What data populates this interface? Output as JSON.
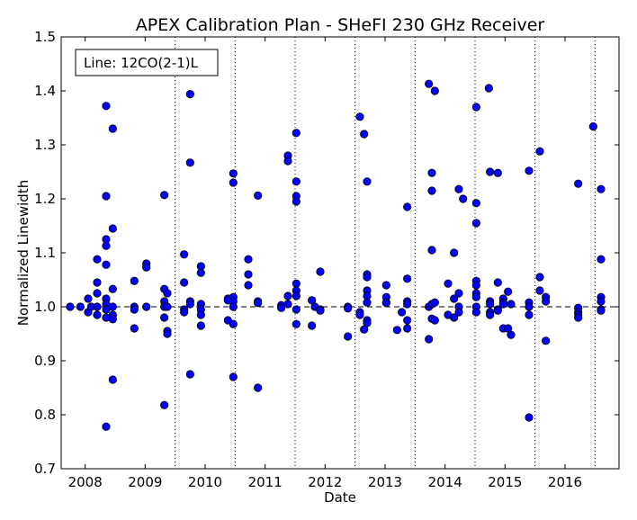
{
  "chart_data": {
    "type": "scatter",
    "title": "APEX Calibration Plan - SHeFI 230 GHz Receiver",
    "xlabel": "Date",
    "ylabel": "Normalized Linewidth",
    "legend_text": "Line: 12CO(2-1)L",
    "legend_placement": "top-left",
    "xlim": [
      2007.6,
      2016.9
    ],
    "ylim": [
      0.7,
      1.5
    ],
    "x_ticks": [
      2008,
      2009,
      2010,
      2011,
      2012,
      2013,
      2014,
      2015,
      2016
    ],
    "x_tick_labels": [
      "2008",
      "2009",
      "2010",
      "2011",
      "2012",
      "2013",
      "2014",
      "2015",
      "2016"
    ],
    "y_ticks": [
      0.7,
      0.8,
      0.9,
      1.0,
      1.1,
      1.2,
      1.3,
      1.4,
      1.5
    ],
    "y_tick_labels": [
      "0.7",
      "0.8",
      "0.9",
      "1.0",
      "1.1",
      "1.2",
      "1.3",
      "1.4",
      "1.5"
    ],
    "vlines_dotted": [
      2009.5,
      2010.5,
      2011.5,
      2012.5,
      2013.5,
      2014.5,
      2015.5,
      2016.5
    ],
    "hline_dashed": 1.0,
    "marker_color": "#0000ff",
    "marker_edge_color": "#000000",
    "points": [
      [
        2007.75,
        1.0
      ],
      [
        2007.92,
        1.0
      ],
      [
        2008.05,
        1.015
      ],
      [
        2008.05,
        0.99
      ],
      [
        2008.1,
        1.0
      ],
      [
        2008.2,
        1.088
      ],
      [
        2008.2,
        1.045
      ],
      [
        2008.2,
        1.025
      ],
      [
        2008.2,
        1.0
      ],
      [
        2008.2,
        0.985
      ],
      [
        2008.35,
        1.372
      ],
      [
        2008.35,
        1.205
      ],
      [
        2008.35,
        1.125
      ],
      [
        2008.35,
        1.113
      ],
      [
        2008.35,
        1.078
      ],
      [
        2008.35,
        1.015
      ],
      [
        2008.35,
        1.005
      ],
      [
        2008.35,
        0.995
      ],
      [
        2008.35,
        0.98
      ],
      [
        2008.35,
        0.778
      ],
      [
        2008.46,
        1.33
      ],
      [
        2008.46,
        1.145
      ],
      [
        2008.46,
        1.033
      ],
      [
        2008.46,
        1.0
      ],
      [
        2008.46,
        0.985
      ],
      [
        2008.46,
        0.977
      ],
      [
        2008.46,
        0.865
      ],
      [
        2008.82,
        1.048
      ],
      [
        2008.82,
        1.0
      ],
      [
        2008.82,
        0.995
      ],
      [
        2008.82,
        0.96
      ],
      [
        2009.02,
        1.08
      ],
      [
        2009.02,
        1.073
      ],
      [
        2009.02,
        1.0
      ],
      [
        2009.32,
        1.207
      ],
      [
        2009.32,
        1.033
      ],
      [
        2009.32,
        1.01
      ],
      [
        2009.32,
        1.0
      ],
      [
        2009.32,
        0.98
      ],
      [
        2009.32,
        0.818
      ],
      [
        2009.37,
        1.025
      ],
      [
        2009.37,
        1.0
      ],
      [
        2009.37,
        0.955
      ],
      [
        2009.37,
        0.95
      ],
      [
        2009.65,
        1.097
      ],
      [
        2009.65,
        1.045
      ],
      [
        2009.65,
        0.995
      ],
      [
        2009.65,
        0.99
      ],
      [
        2009.75,
        1.394
      ],
      [
        2009.75,
        1.267
      ],
      [
        2009.75,
        1.01
      ],
      [
        2009.75,
        1.005
      ],
      [
        2009.75,
        0.875
      ],
      [
        2009.93,
        1.075
      ],
      [
        2009.93,
        1.063
      ],
      [
        2009.93,
        1.005
      ],
      [
        2009.93,
        0.995
      ],
      [
        2009.93,
        0.985
      ],
      [
        2009.93,
        0.965
      ],
      [
        2010.38,
        1.015
      ],
      [
        2010.38,
        1.012
      ],
      [
        2010.38,
        0.975
      ],
      [
        2010.47,
        1.247
      ],
      [
        2010.47,
        1.23
      ],
      [
        2010.47,
        1.018
      ],
      [
        2010.47,
        1.01
      ],
      [
        2010.47,
        1.0
      ],
      [
        2010.47,
        0.968
      ],
      [
        2010.47,
        0.87
      ],
      [
        2010.72,
        1.088
      ],
      [
        2010.72,
        1.06
      ],
      [
        2010.72,
        1.04
      ],
      [
        2010.88,
        1.206
      ],
      [
        2010.88,
        1.01
      ],
      [
        2010.88,
        1.007
      ],
      [
        2010.88,
        0.85
      ],
      [
        2011.27,
        1.003
      ],
      [
        2011.27,
        0.998
      ],
      [
        2011.38,
        1.28
      ],
      [
        2011.38,
        1.27
      ],
      [
        2011.38,
        1.02
      ],
      [
        2011.38,
        1.005
      ],
      [
        2011.52,
        1.322
      ],
      [
        2011.52,
        1.232
      ],
      [
        2011.52,
        1.205
      ],
      [
        2011.52,
        1.195
      ],
      [
        2011.52,
        1.043
      ],
      [
        2011.52,
        1.03
      ],
      [
        2011.52,
        1.02
      ],
      [
        2011.52,
        0.995
      ],
      [
        2011.52,
        0.968
      ],
      [
        2011.78,
        1.012
      ],
      [
        2011.78,
        0.965
      ],
      [
        2011.83,
        1.0
      ],
      [
        2011.92,
        1.065
      ],
      [
        2011.92,
        0.995
      ],
      [
        2011.92,
        0.993
      ],
      [
        2012.38,
        1.0
      ],
      [
        2012.38,
        0.997
      ],
      [
        2012.38,
        0.945
      ],
      [
        2012.58,
        1.352
      ],
      [
        2012.58,
        0.99
      ],
      [
        2012.58,
        0.985
      ],
      [
        2012.65,
        1.32
      ],
      [
        2012.65,
        0.958
      ],
      [
        2012.7,
        1.232
      ],
      [
        2012.7,
        1.06
      ],
      [
        2012.7,
        1.055
      ],
      [
        2012.7,
        1.03
      ],
      [
        2012.7,
        1.02
      ],
      [
        2012.7,
        1.008
      ],
      [
        2012.7,
        0.975
      ],
      [
        2012.7,
        0.97
      ],
      [
        2013.02,
        1.04
      ],
      [
        2013.02,
        1.018
      ],
      [
        2013.02,
        1.008
      ],
      [
        2013.02,
        1.007
      ],
      [
        2013.2,
        0.957
      ],
      [
        2013.28,
        0.99
      ],
      [
        2013.37,
        1.185
      ],
      [
        2013.37,
        1.052
      ],
      [
        2013.37,
        1.01
      ],
      [
        2013.37,
        1.005
      ],
      [
        2013.37,
        0.975
      ],
      [
        2013.37,
        0.96
      ],
      [
        2013.73,
        1.413
      ],
      [
        2013.73,
        1.0
      ],
      [
        2013.73,
        0.94
      ],
      [
        2013.78,
        1.248
      ],
      [
        2013.78,
        1.215
      ],
      [
        2013.78,
        1.105
      ],
      [
        2013.78,
        1.005
      ],
      [
        2013.78,
        0.978
      ],
      [
        2013.83,
        1.4
      ],
      [
        2013.83,
        1.008
      ],
      [
        2013.83,
        0.975
      ],
      [
        2014.05,
        1.043
      ],
      [
        2014.05,
        0.985
      ],
      [
        2014.15,
        1.1
      ],
      [
        2014.15,
        1.015
      ],
      [
        2014.15,
        0.98
      ],
      [
        2014.23,
        1.218
      ],
      [
        2014.23,
        1.025
      ],
      [
        2014.23,
        1.0
      ],
      [
        2014.23,
        0.99
      ],
      [
        2014.3,
        1.2
      ],
      [
        2014.52,
        1.37
      ],
      [
        2014.52,
        1.192
      ],
      [
        2014.52,
        1.155
      ],
      [
        2014.52,
        1.048
      ],
      [
        2014.52,
        1.04
      ],
      [
        2014.52,
        1.025
      ],
      [
        2014.52,
        1.018
      ],
      [
        2014.52,
        1.0
      ],
      [
        2014.52,
        0.99
      ],
      [
        2014.73,
        1.405
      ],
      [
        2014.75,
        1.25
      ],
      [
        2014.75,
        1.01
      ],
      [
        2014.75,
        1.005
      ],
      [
        2014.75,
        0.99
      ],
      [
        2014.75,
        0.985
      ],
      [
        2014.88,
        1.248
      ],
      [
        2014.88,
        1.045
      ],
      [
        2014.88,
        0.995
      ],
      [
        2014.88,
        0.993
      ],
      [
        2014.97,
        1.015
      ],
      [
        2014.97,
        1.008
      ],
      [
        2014.97,
        1.005
      ],
      [
        2014.97,
        0.96
      ],
      [
        2015.05,
        1.028
      ],
      [
        2015.05,
        0.96
      ],
      [
        2015.1,
        1.005
      ],
      [
        2015.1,
        0.948
      ],
      [
        2015.4,
        1.252
      ],
      [
        2015.4,
        1.008
      ],
      [
        2015.4,
        1.0
      ],
      [
        2015.4,
        0.985
      ],
      [
        2015.4,
        0.795
      ],
      [
        2015.58,
        1.288
      ],
      [
        2015.58,
        1.055
      ],
      [
        2015.58,
        1.03
      ],
      [
        2015.68,
        1.018
      ],
      [
        2015.68,
        1.01
      ],
      [
        2015.68,
        0.937
      ],
      [
        2016.22,
        1.228
      ],
      [
        2016.22,
        0.998
      ],
      [
        2016.22,
        0.99
      ],
      [
        2016.22,
        0.985
      ],
      [
        2016.22,
        0.98
      ],
      [
        2016.47,
        1.334
      ],
      [
        2016.6,
        1.218
      ],
      [
        2016.6,
        1.088
      ],
      [
        2016.6,
        1.018
      ],
      [
        2016.6,
        1.01
      ],
      [
        2016.6,
        0.995
      ],
      [
        2016.6,
        0.993
      ]
    ]
  }
}
